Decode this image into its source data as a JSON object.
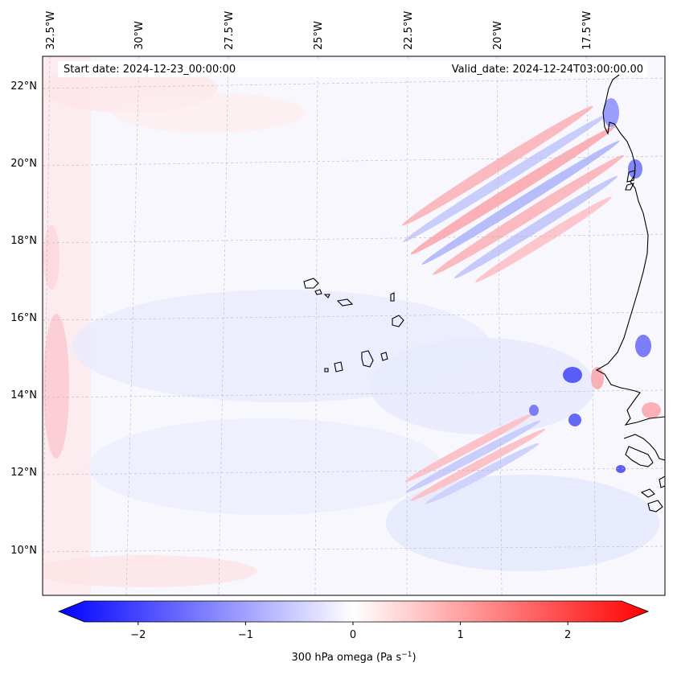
{
  "map": {
    "start_label": "Start date: 2024-12-23_00:00:00",
    "valid_label": "Valid_date: 2024-12-24T03:00:00.00",
    "lon_labels": [
      "32.5°W",
      "30°W",
      "27.5°W",
      "25°W",
      "22.5°W",
      "20°W",
      "17.5°W"
    ],
    "lat_labels": [
      "22°N",
      "20°N",
      "18°N",
      "16°N",
      "14°N",
      "12°N",
      "10°N"
    ],
    "colors": {
      "negative": "#0000ff",
      "zero": "#ffffff",
      "positive": "#ff0000",
      "coast": "#000000"
    }
  },
  "colorbar": {
    "label": "300 hPa omega (Pa s",
    "label_sup": "−1",
    "label_close": ")",
    "min": -2.5,
    "max": 2.5,
    "ticks": [
      {
        "value": -2,
        "text": "−2"
      },
      {
        "value": -1,
        "text": "−1"
      },
      {
        "value": 0,
        "text": "0"
      },
      {
        "value": 1,
        "text": "1"
      },
      {
        "value": 2,
        "text": "2"
      }
    ]
  }
}
